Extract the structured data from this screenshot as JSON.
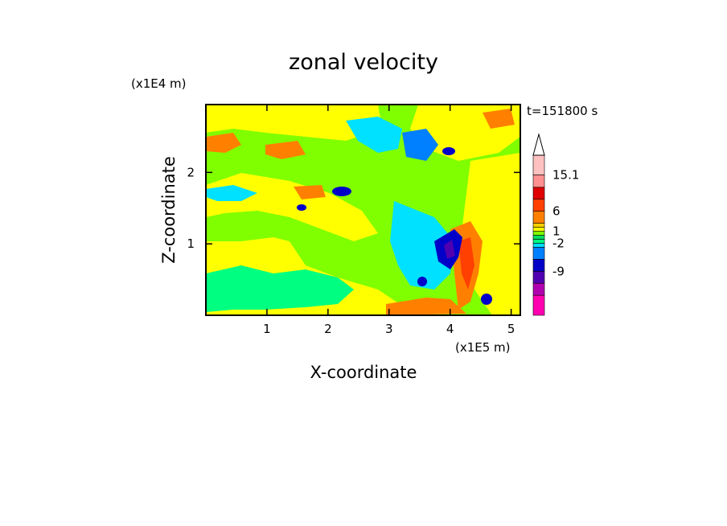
{
  "chart_data": {
    "type": "heatmap",
    "title": "zonal velocity",
    "time_label": "t=151800 s",
    "xlabel": "X-coordinate",
    "ylabel": "Z-coordinate",
    "x_multiplier": "(x1E5 m)",
    "y_multiplier": "(x1E4 m)",
    "xlim": [
      0,
      5.15
    ],
    "ylim": [
      0,
      2.95
    ],
    "x_ticks": [
      "1",
      "2",
      "3",
      "4",
      "5"
    ],
    "y_ticks": [
      "1",
      "2"
    ],
    "colorbar": {
      "tick_labels": [
        "15.1",
        "6",
        "1",
        "-2",
        "-9"
      ],
      "levels": [
        -20,
        -15,
        -12,
        -9,
        -6,
        -3,
        -2,
        -1,
        0,
        1,
        2,
        3,
        6,
        9,
        12,
        15.1,
        20
      ],
      "colors": [
        "#ff00b0",
        "#b000b0",
        "#5000b0",
        "#0000c8",
        "#0080ff",
        "#00e0ff",
        "#00ff80",
        "#00e060",
        "#80ff00",
        "#ffff00",
        "#ffd000",
        "#ff8000",
        "#ff4000",
        "#e00000",
        "#ff9090",
        "#ffc0c0"
      ],
      "extend_max": true
    }
  }
}
